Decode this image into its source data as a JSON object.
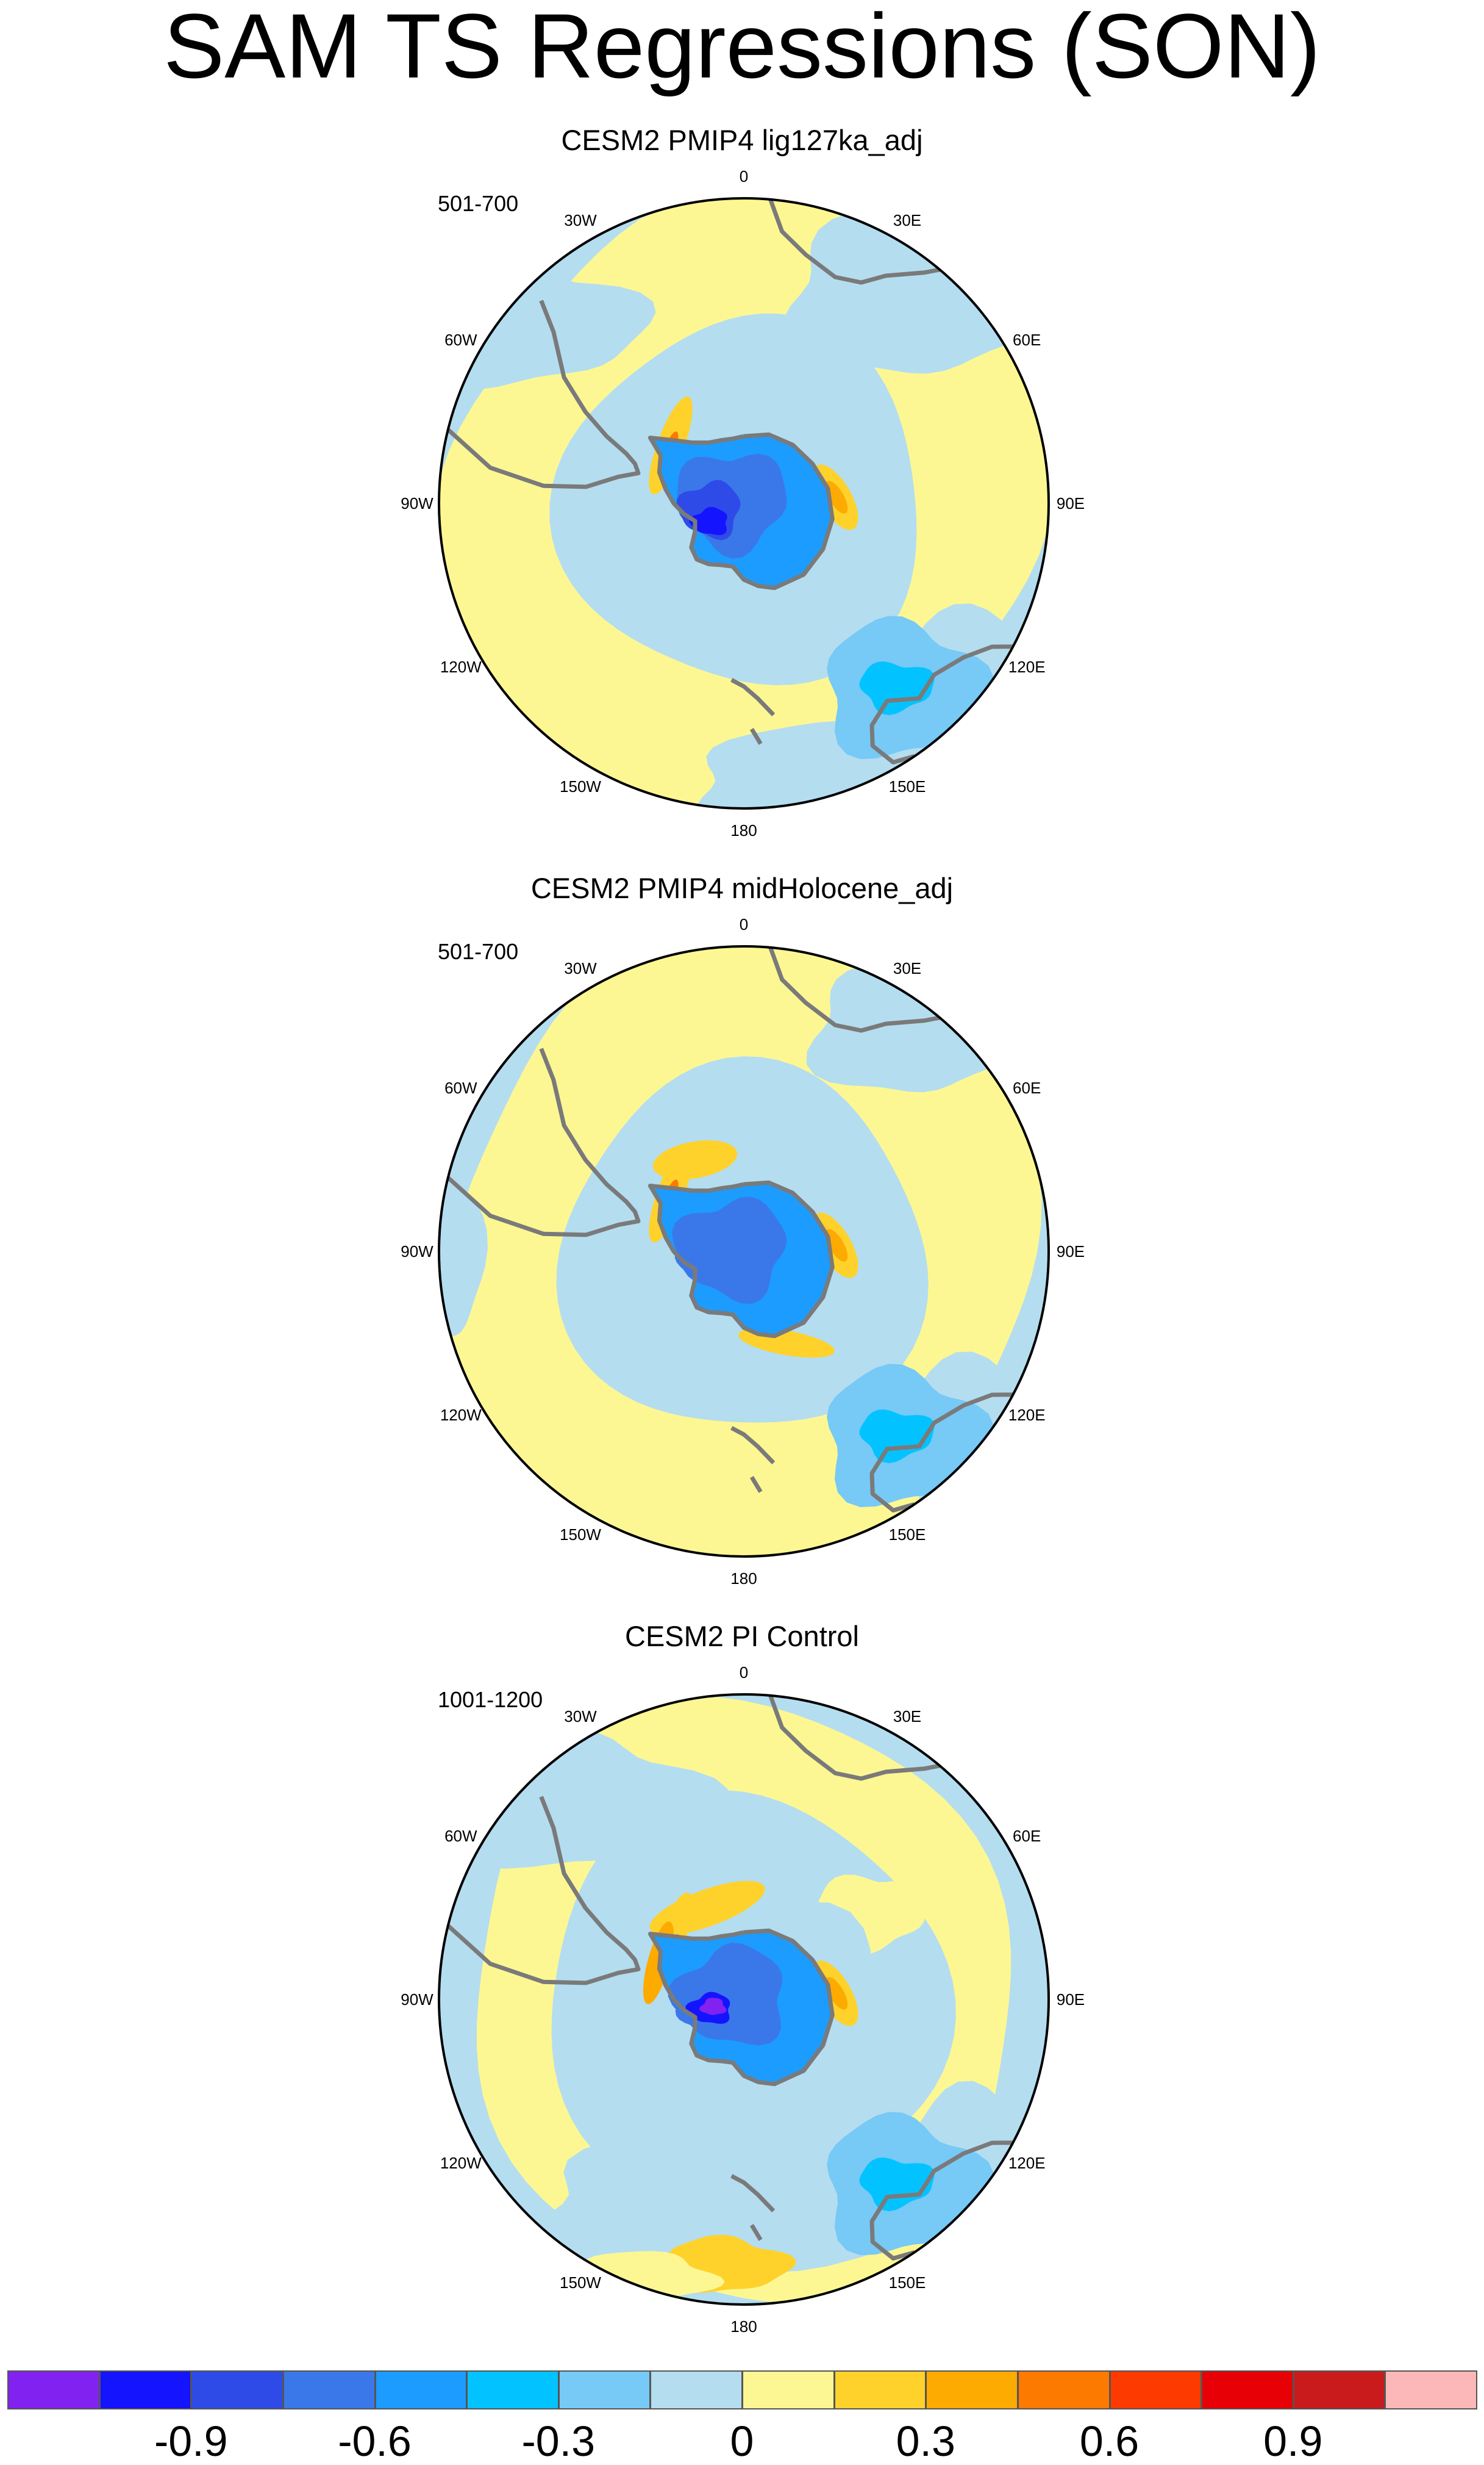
{
  "title": "SAM TS Regressions (SON)",
  "panels": [
    {
      "title": "CESM2 PMIP4 lig127ka_adj",
      "period": "501-700"
    },
    {
      "title": "CESM2 PMIP4 midHolocene_adj",
      "period": "501-700"
    },
    {
      "title": "CESM2 PI Control",
      "period": "1001-1200"
    }
  ],
  "longitude_labels": [
    "0",
    "30E",
    "60E",
    "90E",
    "120E",
    "150E",
    "180",
    "150W",
    "120W",
    "90W",
    "60W",
    "30W"
  ],
  "colorbar": {
    "colors": [
      "#8222f0",
      "#1414ff",
      "#2e4be8",
      "#3a78ea",
      "#1c9cff",
      "#02c3ff",
      "#77c9f6",
      "#b4ddf0",
      "#fdf793",
      "#fed22b",
      "#fdab00",
      "#fd7a00",
      "#fd3a00",
      "#e70005",
      "#c91a1c",
      "#fcb8b8"
    ],
    "labels": [
      "-0.9",
      "-0.6",
      "-0.3",
      "0",
      "0.3",
      "0.6",
      "0.9"
    ]
  },
  "map_colors": {
    "ocean_neg_light": "#b4ddf0",
    "pos_light": "#fdf793",
    "coastline": "#7a7a7a"
  }
}
